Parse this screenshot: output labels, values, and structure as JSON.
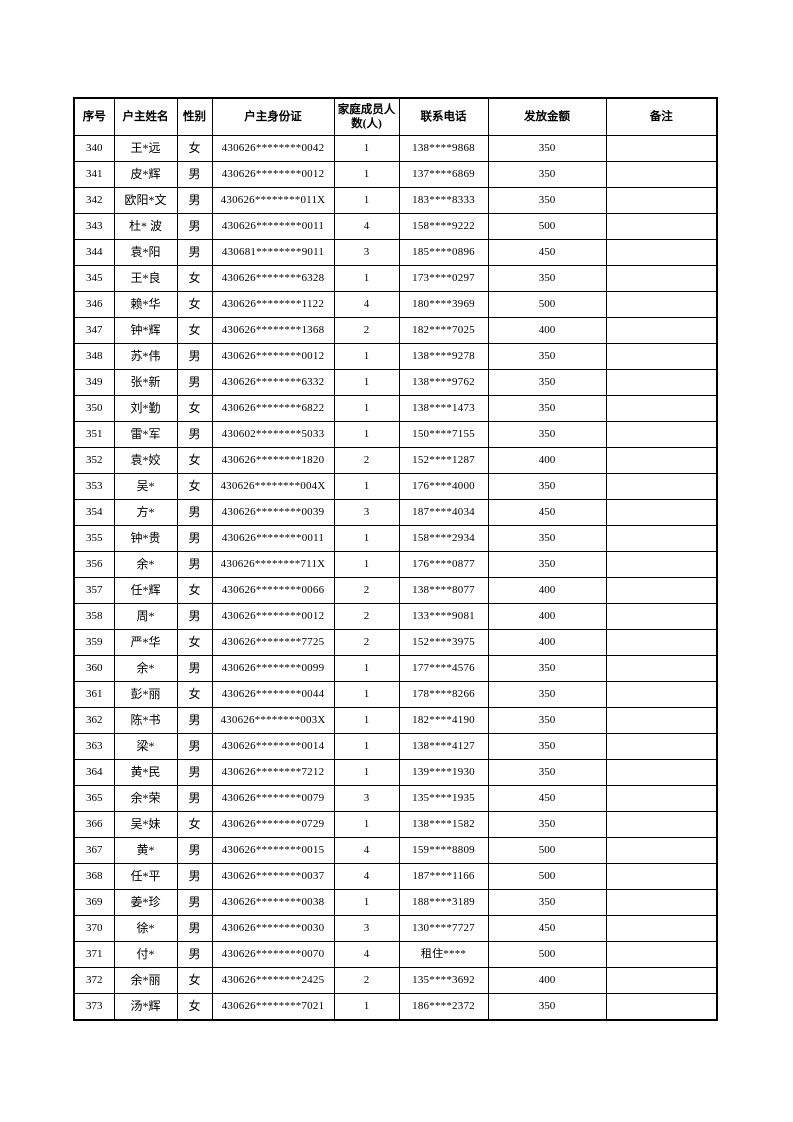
{
  "meta": {
    "page_background": "#ffffff",
    "border_color": "#000000",
    "text_color": "#000000"
  },
  "table": {
    "columns": [
      {
        "key": "seq",
        "label": "序号"
      },
      {
        "key": "name",
        "label": "户主姓名"
      },
      {
        "key": "gender",
        "label": "性别"
      },
      {
        "key": "id",
        "label": "户主身份证"
      },
      {
        "key": "members",
        "label": "家庭成员人数(人)"
      },
      {
        "key": "phone",
        "label": "联系电话"
      },
      {
        "key": "amount",
        "label": "发放金额"
      },
      {
        "key": "remark",
        "label": "备注"
      }
    ],
    "rows": [
      [
        "340",
        "王*远",
        "女",
        "430626********0042",
        "1",
        "138****9868",
        "350",
        ""
      ],
      [
        "341",
        "皮*辉",
        "男",
        "430626********0012",
        "1",
        "137****6869",
        "350",
        ""
      ],
      [
        "342",
        "欧阳*文",
        "男",
        "430626********011X",
        "1",
        "183****8333",
        "350",
        ""
      ],
      [
        "343",
        "杜* 波",
        "男",
        "430626********0011",
        "4",
        "158****9222",
        "500",
        ""
      ],
      [
        "344",
        "袁*阳",
        "男",
        "430681********9011",
        "3",
        "185****0896",
        "450",
        ""
      ],
      [
        "345",
        "王*良",
        "女",
        "430626********6328",
        "1",
        "173****0297",
        "350",
        ""
      ],
      [
        "346",
        "赖*华",
        "女",
        "430626********1122",
        "4",
        "180****3969",
        "500",
        ""
      ],
      [
        "347",
        "钟*辉",
        "女",
        "430626********1368",
        "2",
        "182****7025",
        "400",
        ""
      ],
      [
        "348",
        "苏*伟",
        "男",
        "430626********0012",
        "1",
        "138****9278",
        "350",
        ""
      ],
      [
        "349",
        "张*新",
        "男",
        "430626********6332",
        "1",
        "138****9762",
        "350",
        ""
      ],
      [
        "350",
        "刘*勤",
        "女",
        "430626********6822",
        "1",
        "138****1473",
        "350",
        ""
      ],
      [
        "351",
        "雷*军",
        "男",
        "430602********5033",
        "1",
        "150****7155",
        "350",
        ""
      ],
      [
        "352",
        "袁*姣",
        "女",
        "430626********1820",
        "2",
        "152****1287",
        "400",
        ""
      ],
      [
        "353",
        "吴*",
        "女",
        "430626********004X",
        "1",
        "176****4000",
        "350",
        ""
      ],
      [
        "354",
        "方*",
        "男",
        "430626********0039",
        "3",
        "187****4034",
        "450",
        ""
      ],
      [
        "355",
        "钟*贵",
        "男",
        "430626********0011",
        "1",
        "158****2934",
        "350",
        ""
      ],
      [
        "356",
        "余*",
        "男",
        "430626********711X",
        "1",
        "176****0877",
        "350",
        ""
      ],
      [
        "357",
        "任*辉",
        "女",
        "430626********0066",
        "2",
        "138****8077",
        "400",
        ""
      ],
      [
        "358",
        "周*",
        "男",
        "430626********0012",
        "2",
        "133****9081",
        "400",
        ""
      ],
      [
        "359",
        "严*华",
        "女",
        "430626********7725",
        "2",
        "152****3975",
        "400",
        ""
      ],
      [
        "360",
        "余*",
        "男",
        "430626********0099",
        "1",
        "177****4576",
        "350",
        ""
      ],
      [
        "361",
        "彭*丽",
        "女",
        "430626********0044",
        "1",
        "178****8266",
        "350",
        ""
      ],
      [
        "362",
        "陈*书",
        "男",
        "430626********003X",
        "1",
        "182****4190",
        "350",
        ""
      ],
      [
        "363",
        "梁*",
        "男",
        "430626********0014",
        "1",
        "138****4127",
        "350",
        ""
      ],
      [
        "364",
        "黄*民",
        "男",
        "430626********7212",
        "1",
        "139****1930",
        "350",
        ""
      ],
      [
        "365",
        "余*荣",
        "男",
        "430626********0079",
        "3",
        "135****1935",
        "450",
        ""
      ],
      [
        "366",
        "吴*妹",
        "女",
        "430626********0729",
        "1",
        "138****1582",
        "350",
        ""
      ],
      [
        "367",
        "黄*",
        "男",
        "430626********0015",
        "4",
        "159****8809",
        "500",
        ""
      ],
      [
        "368",
        "任*平",
        "男",
        "430626********0037",
        "4",
        "187****1166",
        "500",
        ""
      ],
      [
        "369",
        "姜*珍",
        "男",
        "430626********0038",
        "1",
        "188****3189",
        "350",
        ""
      ],
      [
        "370",
        "徐*",
        "男",
        "430626********0030",
        "3",
        "130****7727",
        "450",
        ""
      ],
      [
        "371",
        "付*",
        "男",
        "430626********0070",
        "4",
        "租住****",
        "500",
        ""
      ],
      [
        "372",
        "余*丽",
        "女",
        "430626********2425",
        "2",
        "135****3692",
        "400",
        ""
      ],
      [
        "373",
        "汤*辉",
        "女",
        "430626********7021",
        "1",
        "186****2372",
        "350",
        ""
      ]
    ]
  }
}
